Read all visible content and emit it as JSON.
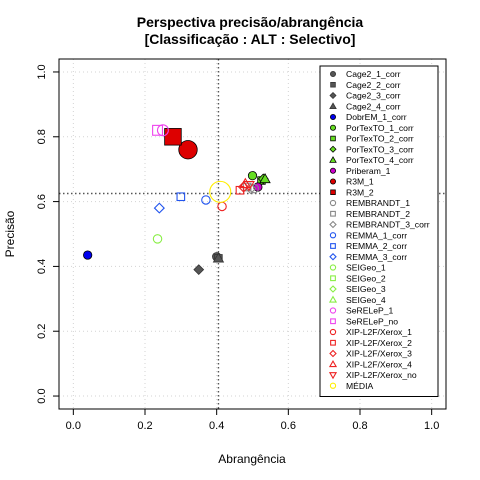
{
  "chart_data": {
    "type": "scatter",
    "title": "Perspectiva precisão/abrangência",
    "subtitle": "[Classificação : ALT : Selectivo]",
    "xlabel": "Abrangência",
    "ylabel": "Precisão",
    "xlim": [
      -0.04,
      1.04
    ],
    "ylim": [
      -0.04,
      1.04
    ],
    "xticks": [
      "0.0",
      "0.2",
      "0.4",
      "0.6",
      "0.8",
      "1.0"
    ],
    "yticks": [
      "0.0",
      "0.2",
      "0.4",
      "0.6",
      "0.8",
      "1.0"
    ],
    "grid": true,
    "legend_position": "right",
    "reference_lines": {
      "x": 0.405,
      "y": 0.625,
      "style": "dotted",
      "color": "#555555"
    },
    "series": [
      {
        "name": "Cage2_1_corr",
        "shape": "circle",
        "color": "#555555",
        "filled": true,
        "size": 1,
        "points": [
          [
            0.4,
            0.43
          ]
        ]
      },
      {
        "name": "Cage2_2_corr",
        "shape": "square",
        "color": "#555555",
        "filled": true,
        "size": 1,
        "points": [
          [
            0.405,
            0.425
          ]
        ]
      },
      {
        "name": "Cage2_3_corr",
        "shape": "diamond",
        "color": "#555555",
        "filled": true,
        "size": 1,
        "points": [
          [
            0.35,
            0.39
          ]
        ]
      },
      {
        "name": "Cage2_4_corr",
        "shape": "triangle",
        "color": "#555555",
        "filled": true,
        "size": 1,
        "points": [
          [
            0.405,
            0.425
          ]
        ]
      },
      {
        "name": "DobrEM_1_corr",
        "shape": "circle",
        "color": "#0000ee",
        "filled": true,
        "size": 1,
        "points": [
          [
            0.04,
            0.435
          ]
        ]
      },
      {
        "name": "PorTexTO_1_corr",
        "shape": "circle",
        "color": "#66dd22",
        "filled": true,
        "size": 1,
        "points": [
          [
            0.5,
            0.68
          ]
        ]
      },
      {
        "name": "PorTexTO_2_corr",
        "shape": "square",
        "color": "#66dd22",
        "filled": true,
        "size": 1,
        "points": [
          [
            0.525,
            0.665
          ]
        ]
      },
      {
        "name": "PorTexTO_3_corr",
        "shape": "diamond",
        "color": "#66dd22",
        "filled": true,
        "size": 1,
        "points": [
          [
            0.53,
            0.67
          ]
        ]
      },
      {
        "name": "PorTexTO_4_corr",
        "shape": "triangle",
        "color": "#66dd22",
        "filled": true,
        "size": 1,
        "points": [
          [
            0.535,
            0.67
          ]
        ]
      },
      {
        "name": "Priberam_1",
        "shape": "circle",
        "color": "#cc00cc",
        "filled": true,
        "size": 1,
        "points": [
          [
            0.515,
            0.645
          ]
        ]
      },
      {
        "name": "R3M_1",
        "shape": "circle",
        "color": "#dd0000",
        "filled": true,
        "size": 2.2,
        "points": [
          [
            0.32,
            0.76
          ]
        ]
      },
      {
        "name": "R3M_2",
        "shape": "square",
        "color": "#dd0000",
        "filled": true,
        "size": 2.2,
        "points": [
          [
            0.278,
            0.8
          ]
        ]
      },
      {
        "name": "REMBRANDT_1",
        "shape": "circle",
        "color": "#888888",
        "filled": false,
        "size": 1,
        "points": [
          [
            0.505,
            0.64
          ]
        ]
      },
      {
        "name": "REMBRANDT_2",
        "shape": "square",
        "color": "#888888",
        "filled": false,
        "size": 1,
        "points": [
          [
            0.485,
            0.645
          ]
        ]
      },
      {
        "name": "REMBRANDT_3_corr",
        "shape": "diamond",
        "color": "#888888",
        "filled": false,
        "size": 1,
        "points": [
          [
            0.495,
            0.64
          ]
        ]
      },
      {
        "name": "REMMA_1_corr",
        "shape": "circle",
        "color": "#2255ee",
        "filled": false,
        "size": 1,
        "points": [
          [
            0.37,
            0.605
          ]
        ]
      },
      {
        "name": "REMMA_2_corr",
        "shape": "square",
        "color": "#2255ee",
        "filled": false,
        "size": 1,
        "points": [
          [
            0.3,
            0.615
          ]
        ]
      },
      {
        "name": "REMMA_3_corr",
        "shape": "diamond",
        "color": "#2255ee",
        "filled": false,
        "size": 1,
        "points": [
          [
            0.24,
            0.58
          ]
        ]
      },
      {
        "name": "SEIGeo_1",
        "shape": "circle",
        "color": "#88ee44",
        "filled": false,
        "size": 1,
        "points": [
          [
            0.235,
            0.485
          ]
        ]
      },
      {
        "name": "SEIGeo_2",
        "shape": "square",
        "color": "#88ee44",
        "filled": false,
        "size": 1,
        "points": []
      },
      {
        "name": "SEIGeo_3",
        "shape": "diamond",
        "color": "#88ee44",
        "filled": false,
        "size": 1,
        "points": []
      },
      {
        "name": "SEIGeo_4",
        "shape": "triangle",
        "color": "#88ee44",
        "filled": false,
        "size": 1,
        "points": []
      },
      {
        "name": "SeRELeP_1",
        "shape": "circle",
        "color": "#ee44ee",
        "filled": false,
        "size": 1.3,
        "points": [
          [
            0.25,
            0.82
          ]
        ]
      },
      {
        "name": "SeRELeP_no",
        "shape": "square",
        "color": "#ee44ee",
        "filled": false,
        "size": 1.3,
        "points": [
          [
            0.235,
            0.82
          ]
        ]
      },
      {
        "name": "XIP-L2F/Xerox_1",
        "shape": "circle",
        "color": "#ee2222",
        "filled": false,
        "size": 1,
        "points": [
          [
            0.415,
            0.585
          ]
        ]
      },
      {
        "name": "XIP-L2F/Xerox_2",
        "shape": "square",
        "color": "#ee2222",
        "filled": false,
        "size": 1,
        "points": [
          [
            0.465,
            0.635
          ]
        ]
      },
      {
        "name": "XIP-L2F/Xerox_3",
        "shape": "diamond",
        "color": "#ee2222",
        "filled": false,
        "size": 1,
        "points": [
          [
            0.475,
            0.645
          ]
        ]
      },
      {
        "name": "XIP-L2F/Xerox_4",
        "shape": "triangle",
        "color": "#ee2222",
        "filled": false,
        "size": 1,
        "points": [
          [
            0.48,
            0.655
          ]
        ]
      },
      {
        "name": "XIP-L2F/Xerox_no",
        "shape": "triangle-down",
        "color": "#ee2222",
        "filled": false,
        "size": 1,
        "points": [
          [
            0.49,
            0.65
          ]
        ]
      },
      {
        "name": "MÉDIA",
        "shape": "circle",
        "color": "#ffee00",
        "filled": false,
        "size": 2.5,
        "points": [
          [
            0.41,
            0.63
          ]
        ]
      }
    ]
  }
}
